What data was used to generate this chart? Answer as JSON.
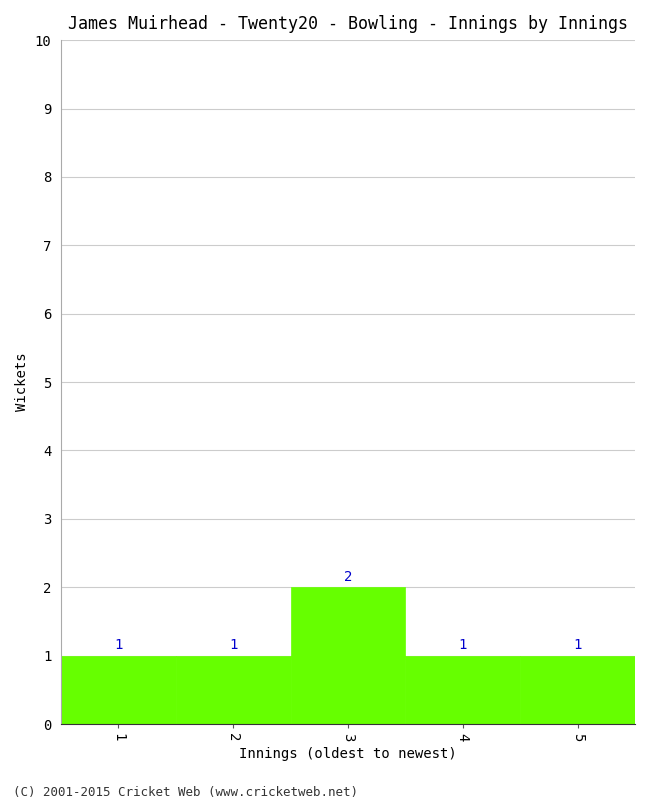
{
  "title": "James Muirhead - Twenty20 - Bowling - Innings by Innings",
  "xlabel": "Innings (oldest to newest)",
  "ylabel": "Wickets",
  "categories": [
    1,
    2,
    3,
    4,
    5
  ],
  "values": [
    1,
    1,
    2,
    1,
    1
  ],
  "bar_color": "#66ff00",
  "bar_edge_color": "#66ff00",
  "ylim": [
    0,
    10
  ],
  "yticks": [
    0,
    1,
    2,
    3,
    4,
    5,
    6,
    7,
    8,
    9,
    10
  ],
  "xticks": [
    1,
    2,
    3,
    4,
    5
  ],
  "xlim": [
    0.5,
    5.5
  ],
  "annotation_color": "#0000cc",
  "background_color": "#ffffff",
  "grid_color": "#cccccc",
  "footer": "(C) 2001-2015 Cricket Web (www.cricketweb.net)",
  "title_fontsize": 12,
  "label_fontsize": 10,
  "tick_fontsize": 10,
  "annotation_fontsize": 10,
  "footer_fontsize": 9
}
